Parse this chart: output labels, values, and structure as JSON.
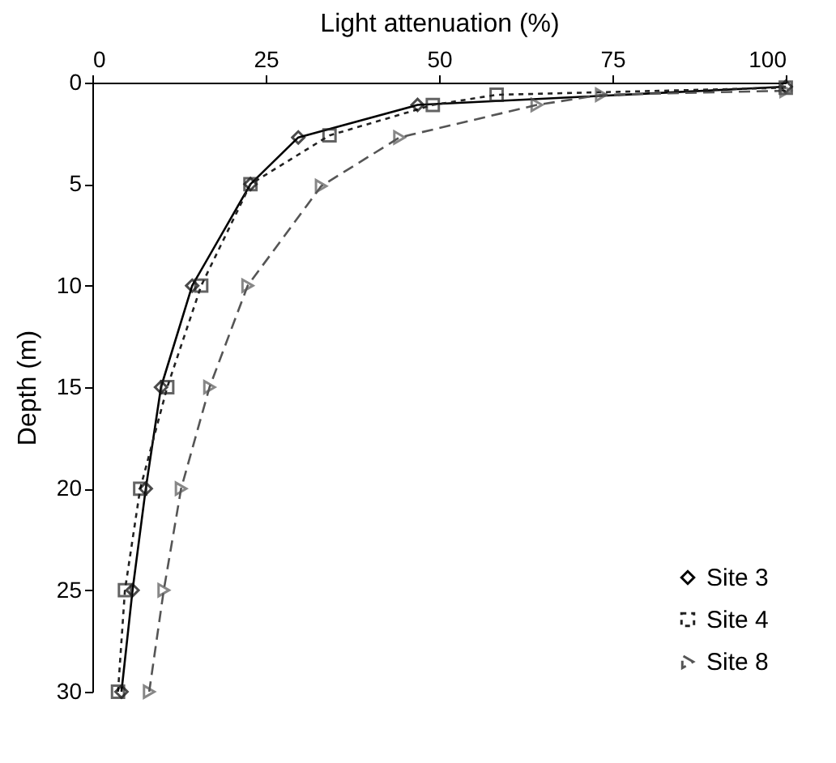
{
  "chart_data": {
    "type": "line",
    "xlabel": "Light attenuation (%)",
    "ylabel": "Depth (m)",
    "xlim": [
      0,
      100
    ],
    "xticks": [
      0,
      25,
      50,
      75,
      100
    ],
    "ylim": [
      30,
      0
    ],
    "yticks": [
      0,
      5,
      10,
      15,
      20,
      25,
      30
    ],
    "grid": false,
    "legend": "bottom right",
    "series": [
      {
        "name": "Site 3",
        "color": "#000000",
        "marker": "diamond",
        "line_style": "solid",
        "x": [
          100,
          46.9,
          29.7,
          22.8,
          14.4,
          9.9,
          7.7,
          5.8,
          4.2
        ],
        "values": [
          0.2,
          1.1,
          2.7,
          5,
          10,
          15,
          20,
          25,
          30
        ]
      },
      {
        "name": "Site 4",
        "color": "#222222",
        "marker": "square",
        "line_style": "dotted",
        "x": [
          100,
          58.3,
          49.1,
          34.2,
          22.8,
          15.7,
          10.8,
          6.9,
          4.7,
          3.7
        ],
        "values": [
          0.25,
          0.6,
          1.1,
          2.6,
          5,
          10,
          15,
          20,
          25,
          30
        ]
      },
      {
        "name": "Site 8",
        "color": "#555555",
        "marker": "triangle",
        "line_style": "dashed",
        "x": [
          100,
          73.4,
          64.1,
          44.3,
          33.0,
          22.4,
          16.9,
          12.8,
          10.3,
          8.2
        ],
        "values": [
          0.4,
          0.6,
          1.1,
          2.7,
          5.1,
          10,
          15,
          20,
          25,
          30
        ]
      }
    ]
  }
}
